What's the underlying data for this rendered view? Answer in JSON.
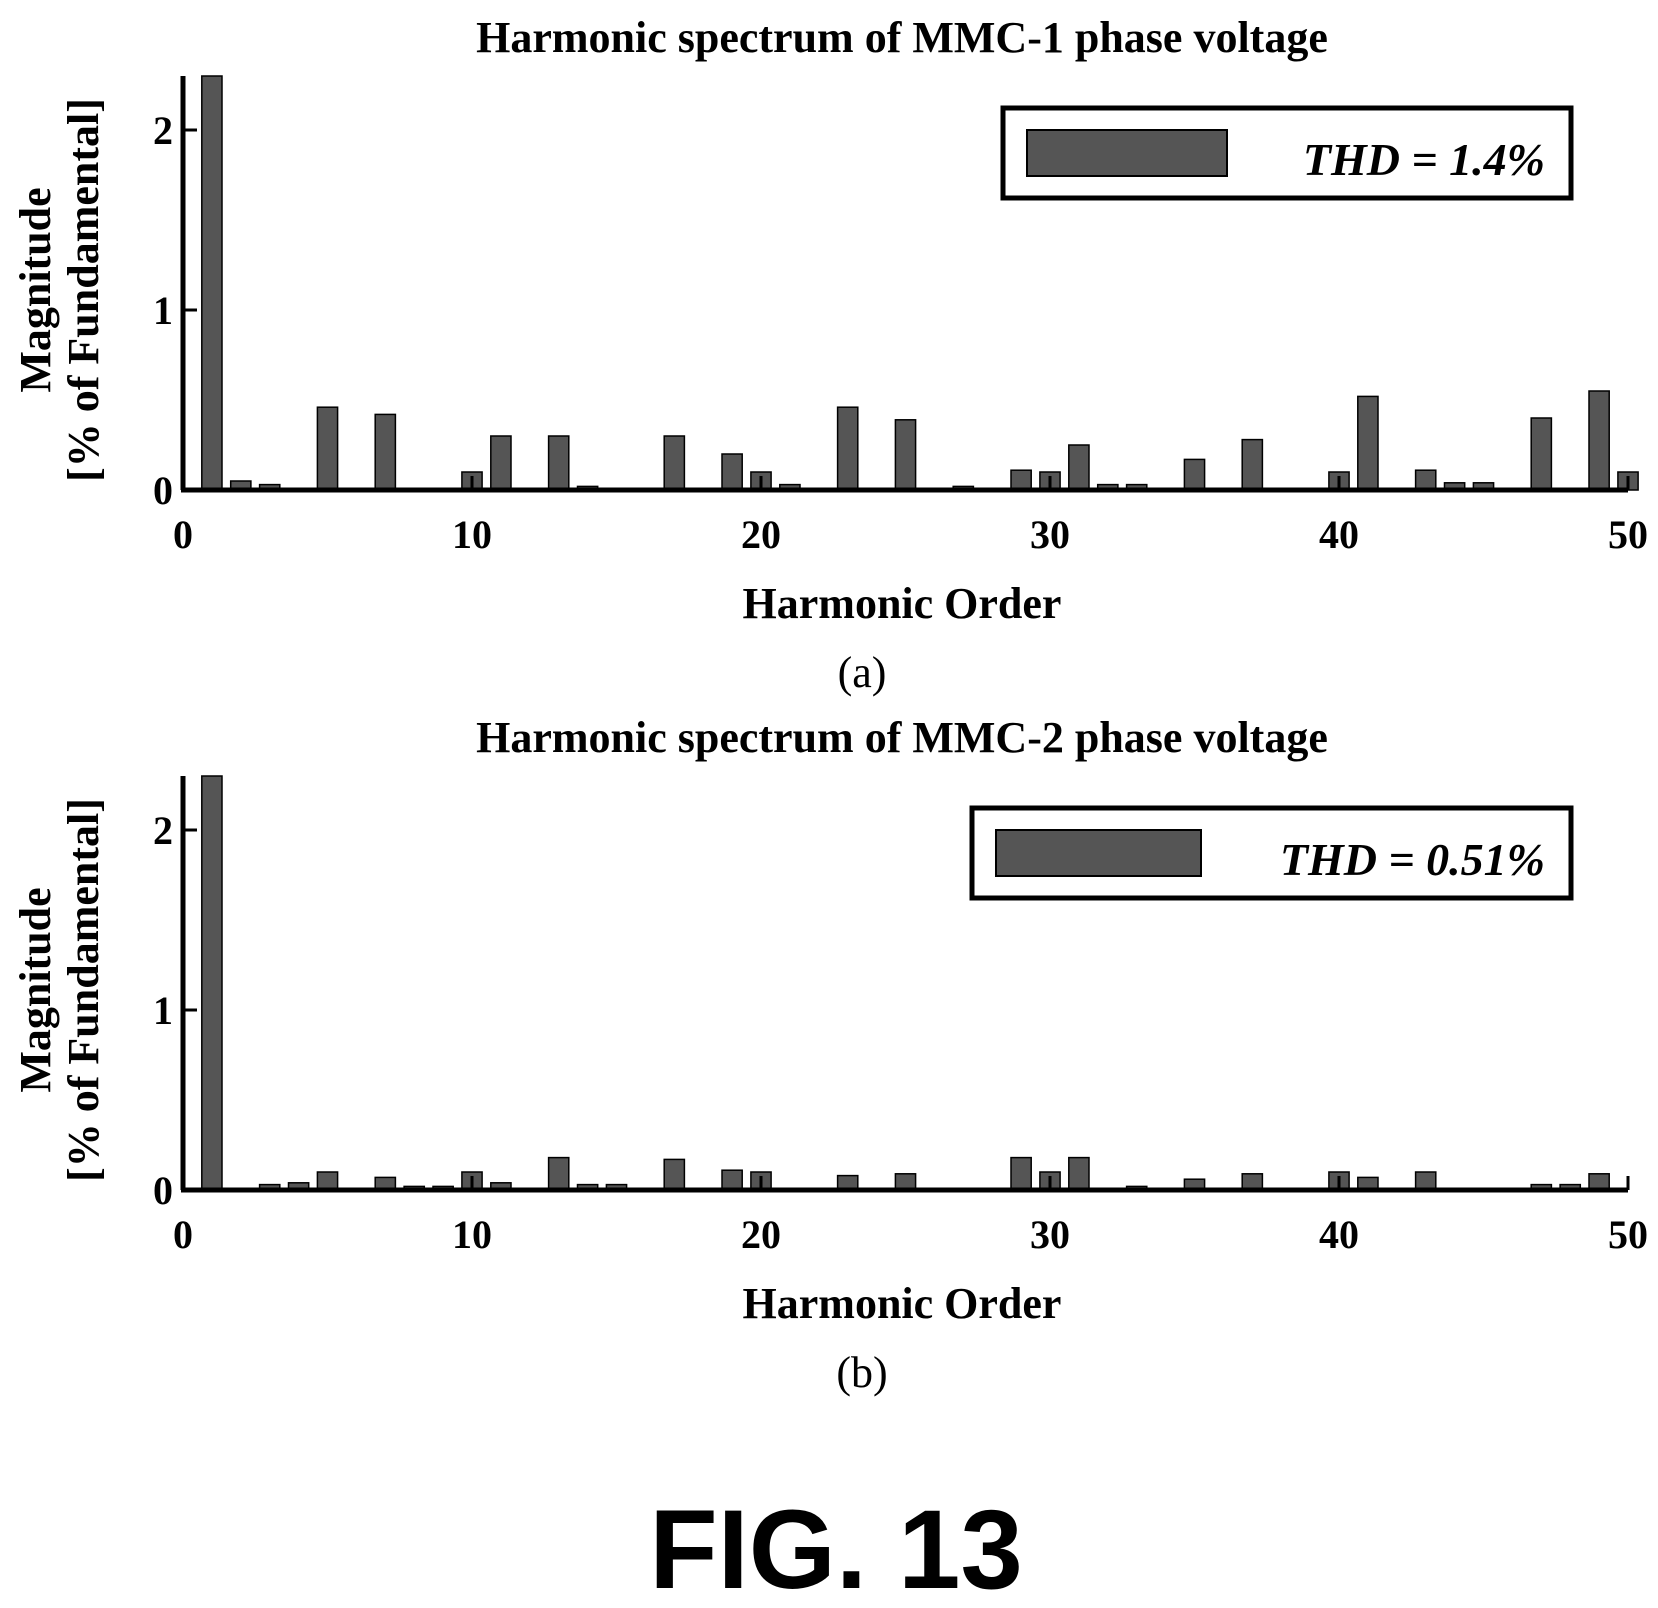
{
  "chart_data": [
    {
      "type": "bar",
      "title": "Harmonic spectrum of MMC-1 phase voltage",
      "xlabel": "Harmonic Order",
      "ylabel": [
        "Magnitude",
        "[% of Fundamental]"
      ],
      "xlim": [
        0,
        50
      ],
      "ylim": [
        0,
        2.3
      ],
      "xticks": [
        "0",
        "10",
        "20",
        "30",
        "40",
        "50"
      ],
      "yticks": [
        "0",
        "1",
        "2"
      ],
      "caption": "(a)",
      "legend": "THD = 1.4%",
      "legend_position": "top-right",
      "grid": false,
      "bar_color": "#555555",
      "x": [
        1,
        2,
        3,
        5,
        7,
        10,
        11,
        13,
        14,
        17,
        19,
        20,
        21,
        23,
        25,
        27,
        29,
        30,
        31,
        32,
        33,
        35,
        37,
        40,
        41,
        43,
        44,
        45,
        47,
        49,
        50
      ],
      "values": [
        2.3,
        0.05,
        0.03,
        0.46,
        0.42,
        0.1,
        0.3,
        0.3,
        0.02,
        0.3,
        0.2,
        0.1,
        0.03,
        0.46,
        0.39,
        0.02,
        0.11,
        0.1,
        0.25,
        0.03,
        0.03,
        0.17,
        0.28,
        0.1,
        0.52,
        0.11,
        0.04,
        0.04,
        0.4,
        0.55,
        0.1
      ]
    },
    {
      "type": "bar",
      "title": "Harmonic spectrum of MMC-2 phase voltage",
      "xlabel": "Harmonic Order",
      "ylabel": [
        "Magnitude",
        "[% of Fundamental]"
      ],
      "xlim": [
        0,
        50
      ],
      "ylim": [
        0,
        2.3
      ],
      "xticks": [
        "0",
        "10",
        "20",
        "30",
        "40",
        "50"
      ],
      "yticks": [
        "0",
        "1",
        "2"
      ],
      "caption": "(b)",
      "legend": "THD = 0.51%",
      "legend_position": "top-right",
      "grid": false,
      "bar_color": "#555555",
      "x": [
        1,
        3,
        4,
        5,
        7,
        8,
        9,
        10,
        11,
        13,
        14,
        15,
        17,
        19,
        20,
        23,
        25,
        29,
        30,
        31,
        33,
        35,
        37,
        40,
        41,
        43,
        47,
        48,
        49
      ],
      "values": [
        2.3,
        0.03,
        0.04,
        0.1,
        0.07,
        0.02,
        0.02,
        0.1,
        0.04,
        0.18,
        0.03,
        0.03,
        0.17,
        0.11,
        0.1,
        0.08,
        0.09,
        0.18,
        0.1,
        0.18,
        0.02,
        0.06,
        0.09,
        0.1,
        0.07,
        0.1,
        0.03,
        0.03,
        0.09
      ]
    }
  ],
  "figure_label": "FIG. 13"
}
